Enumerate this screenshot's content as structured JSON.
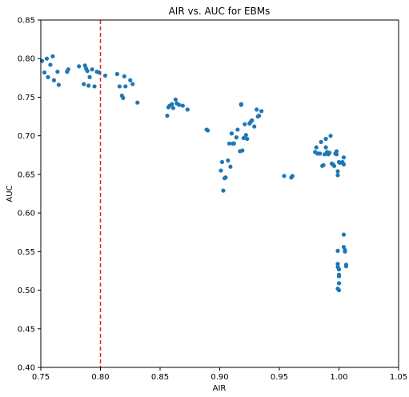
{
  "chart_data": {
    "type": "scatter",
    "title": "AIR vs. AUC for EBMs",
    "xlabel": "AIR",
    "ylabel": "AUC",
    "xlim": [
      0.75,
      1.05
    ],
    "ylim": [
      0.4,
      0.85
    ],
    "xticks": [
      "0.75",
      "0.80",
      "0.85",
      "0.90",
      "0.95",
      "1.00",
      "1.05"
    ],
    "yticks": [
      "0.40",
      "0.45",
      "0.50",
      "0.55",
      "0.60",
      "0.65",
      "0.70",
      "0.75",
      "0.80",
      "0.85"
    ],
    "grid": false,
    "legend": "none",
    "point_color": "#1f77b4",
    "reference_line": {
      "axis": "x",
      "value": 0.8,
      "color": "#d62728",
      "style": "dashed"
    },
    "points": [
      [
        0.751,
        0.797
      ],
      [
        0.753,
        0.782
      ],
      [
        0.755,
        0.8
      ],
      [
        0.756,
        0.776
      ],
      [
        0.758,
        0.792
      ],
      [
        0.76,
        0.803
      ],
      [
        0.761,
        0.772
      ],
      [
        0.764,
        0.783
      ],
      [
        0.765,
        0.766
      ],
      [
        0.772,
        0.783
      ],
      [
        0.773,
        0.786
      ],
      [
        0.782,
        0.79
      ],
      [
        0.786,
        0.767
      ],
      [
        0.787,
        0.791
      ],
      [
        0.788,
        0.787
      ],
      [
        0.789,
        0.784
      ],
      [
        0.79,
        0.765
      ],
      [
        0.791,
        0.776
      ],
      [
        0.793,
        0.786
      ],
      [
        0.795,
        0.764
      ],
      [
        0.797,
        0.783
      ],
      [
        0.799,
        0.782
      ],
      [
        0.804,
        0.778
      ],
      [
        0.814,
        0.78
      ],
      [
        0.816,
        0.764
      ],
      [
        0.818,
        0.752
      ],
      [
        0.819,
        0.749
      ],
      [
        0.82,
        0.777
      ],
      [
        0.821,
        0.764
      ],
      [
        0.825,
        0.772
      ],
      [
        0.827,
        0.767
      ],
      [
        0.831,
        0.743
      ],
      [
        0.856,
        0.726
      ],
      [
        0.857,
        0.737
      ],
      [
        0.858,
        0.739
      ],
      [
        0.86,
        0.741
      ],
      [
        0.861,
        0.736
      ],
      [
        0.863,
        0.747
      ],
      [
        0.864,
        0.742
      ],
      [
        0.866,
        0.74
      ],
      [
        0.869,
        0.739
      ],
      [
        0.873,
        0.734
      ],
      [
        0.889,
        0.708
      ],
      [
        0.89,
        0.707
      ],
      [
        0.901,
        0.655
      ],
      [
        0.902,
        0.666
      ],
      [
        0.903,
        0.629
      ],
      [
        0.904,
        0.645
      ],
      [
        0.905,
        0.646
      ],
      [
        0.907,
        0.668
      ],
      [
        0.908,
        0.69
      ],
      [
        0.909,
        0.66
      ],
      [
        0.91,
        0.703
      ],
      [
        0.911,
        0.69
      ],
      [
        0.912,
        0.69
      ],
      [
        0.914,
        0.698
      ],
      [
        0.915,
        0.708
      ],
      [
        0.917,
        0.68
      ],
      [
        0.918,
        0.741
      ],
      [
        0.918,
        0.74
      ],
      [
        0.919,
        0.681
      ],
      [
        0.92,
        0.697
      ],
      [
        0.921,
        0.715
      ],
      [
        0.922,
        0.701
      ],
      [
        0.923,
        0.696
      ],
      [
        0.925,
        0.716
      ],
      [
        0.926,
        0.718
      ],
      [
        0.927,
        0.72
      ],
      [
        0.929,
        0.712
      ],
      [
        0.931,
        0.734
      ],
      [
        0.932,
        0.725
      ],
      [
        0.933,
        0.726
      ],
      [
        0.935,
        0.732
      ],
      [
        0.954,
        0.648
      ],
      [
        0.96,
        0.646
      ],
      [
        0.961,
        0.648
      ],
      [
        0.98,
        0.679
      ],
      [
        0.981,
        0.685
      ],
      [
        0.982,
        0.677
      ],
      [
        0.984,
        0.677
      ],
      [
        0.985,
        0.692
      ],
      [
        0.986,
        0.661
      ],
      [
        0.987,
        0.662
      ],
      [
        0.988,
        0.676
      ],
      [
        0.989,
        0.696
      ],
      [
        0.989,
        0.685
      ],
      [
        0.99,
        0.679
      ],
      [
        0.991,
        0.676
      ],
      [
        0.992,
        0.678
      ],
      [
        0.993,
        0.7
      ],
      [
        0.994,
        0.664
      ],
      [
        0.995,
        0.663
      ],
      [
        0.996,
        0.661
      ],
      [
        0.997,
        0.677
      ],
      [
        0.998,
        0.68
      ],
      [
        0.998,
        0.676
      ],
      [
        0.999,
        0.649
      ],
      [
        0.999,
        0.654
      ],
      [
        1.0,
        0.666
      ],
      [
        1.001,
        0.665
      ],
      [
        1.003,
        0.666
      ],
      [
        1.004,
        0.672
      ],
      [
        1.004,
        0.663
      ],
      [
        0.999,
        0.551
      ],
      [
        0.999,
        0.534
      ],
      [
        0.999,
        0.53
      ],
      [
        1.0,
        0.52
      ],
      [
        1.0,
        0.509
      ],
      [
        1.0,
        0.5
      ],
      [
        0.999,
        0.502
      ],
      [
        1.0,
        0.527
      ],
      [
        1.0,
        0.518
      ],
      [
        1.004,
        0.572
      ],
      [
        1.004,
        0.556
      ],
      [
        1.005,
        0.55
      ],
      [
        1.005,
        0.552
      ],
      [
        1.006,
        0.531
      ],
      [
        1.006,
        0.533
      ]
    ]
  }
}
